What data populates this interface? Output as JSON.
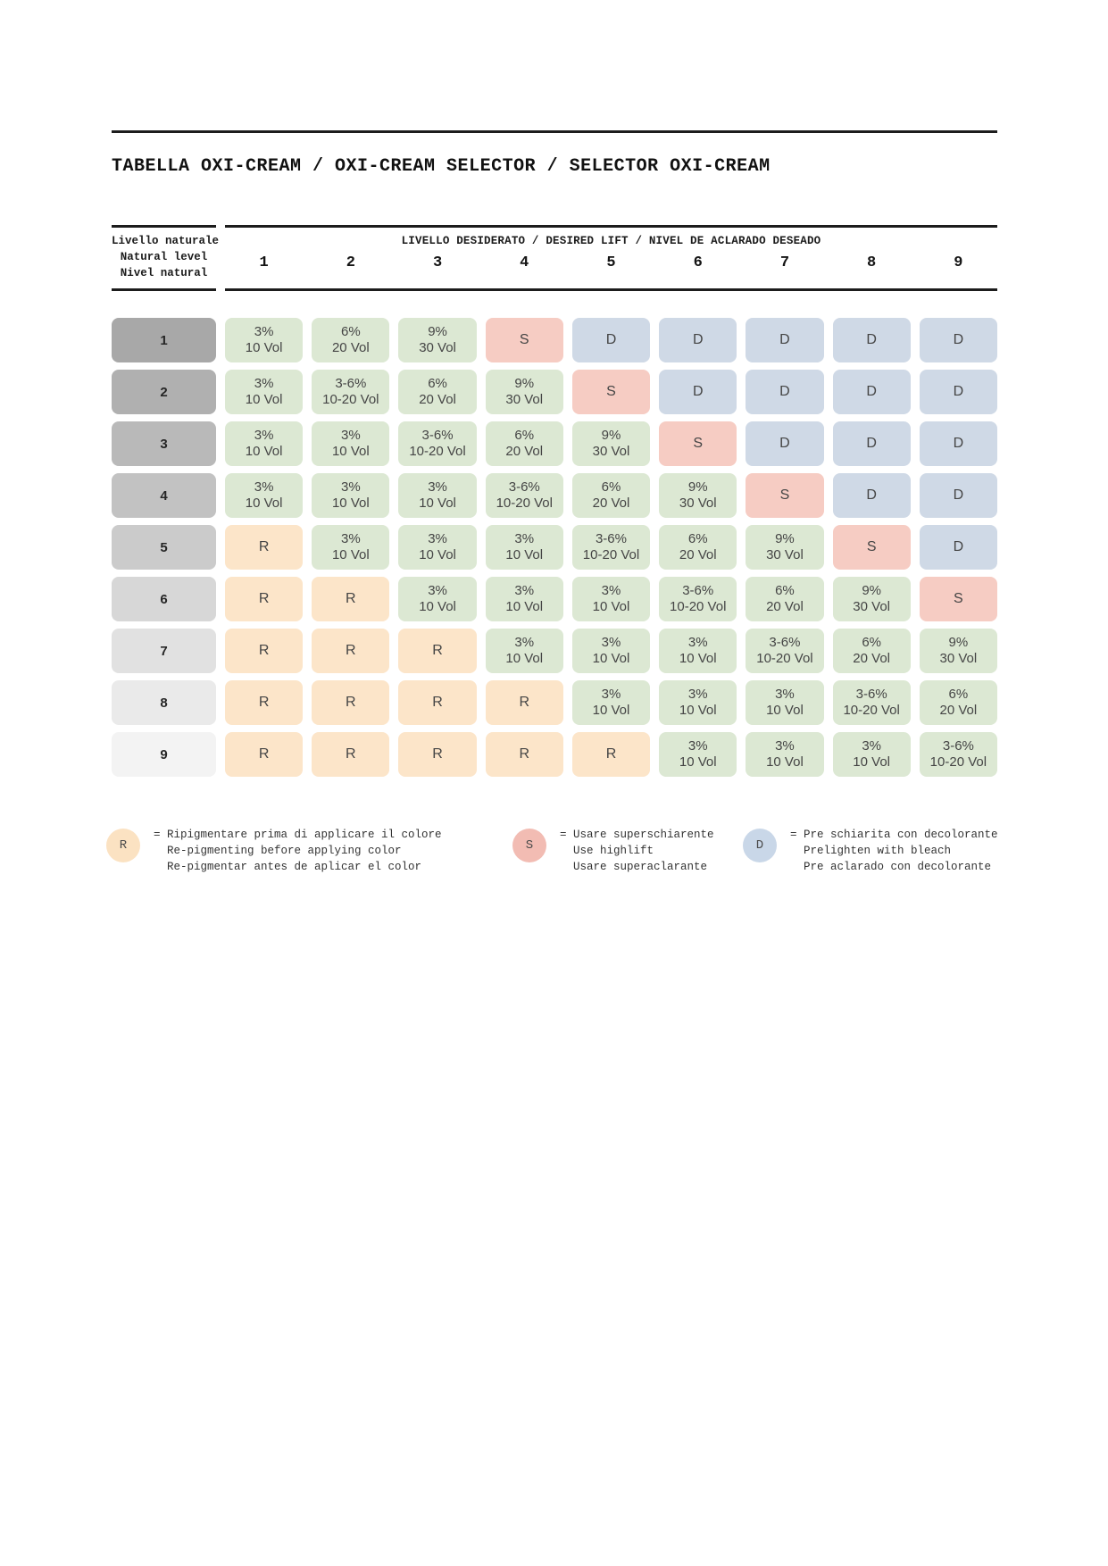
{
  "title": "TABELLA OXI-CREAM / OXI-CREAM SELECTOR / SELECTOR OXI-CREAM",
  "row_axis": {
    "lines": [
      "Livello naturale",
      "Natural level",
      "Nivel natural"
    ]
  },
  "col_axis": {
    "label": "LIVELLO DESIDERATO / DESIRED LIFT / NIVEL DE ACLARADO DESEADO",
    "columns": [
      "1",
      "2",
      "3",
      "4",
      "5",
      "6",
      "7",
      "8",
      "9"
    ]
  },
  "cell_types": {
    "3": {
      "lines": [
        "3%",
        "10 Vol"
      ],
      "bg": "#dce8d3"
    },
    "36": {
      "lines": [
        "3-6%",
        "10-20 Vol"
      ],
      "bg": "#dce8d3"
    },
    "6": {
      "lines": [
        "6%",
        "20 Vol"
      ],
      "bg": "#dce8d3"
    },
    "9": {
      "lines": [
        "9%",
        "30 Vol"
      ],
      "bg": "#dce8d3"
    },
    "R": {
      "lines": [
        "R"
      ],
      "bg": "#fce5c9"
    },
    "S": {
      "lines": [
        "S"
      ],
      "bg": "#f6ccc3"
    },
    "D": {
      "lines": [
        "D"
      ],
      "bg": "#cfd9e6"
    }
  },
  "rows": [
    {
      "level": "1",
      "header_bg": "#a8a8a8",
      "cells": [
        "3",
        "6",
        "9",
        "S",
        "D",
        "D",
        "D",
        "D",
        "D"
      ]
    },
    {
      "level": "2",
      "header_bg": "#b0b0b0",
      "cells": [
        "3",
        "36",
        "6",
        "9",
        "S",
        "D",
        "D",
        "D",
        "D"
      ]
    },
    {
      "level": "3",
      "header_bg": "#b9b9b9",
      "cells": [
        "3",
        "3",
        "36",
        "6",
        "9",
        "S",
        "D",
        "D",
        "D"
      ]
    },
    {
      "level": "4",
      "header_bg": "#c2c2c2",
      "cells": [
        "3",
        "3",
        "3",
        "36",
        "6",
        "9",
        "S",
        "D",
        "D"
      ]
    },
    {
      "level": "5",
      "header_bg": "#cbcbcb",
      "cells": [
        "R",
        "3",
        "3",
        "3",
        "36",
        "6",
        "9",
        "S",
        "D"
      ]
    },
    {
      "level": "6",
      "header_bg": "#d7d7d7",
      "cells": [
        "R",
        "R",
        "3",
        "3",
        "3",
        "36",
        "6",
        "9",
        "S"
      ]
    },
    {
      "level": "7",
      "header_bg": "#e1e1e1",
      "cells": [
        "R",
        "R",
        "R",
        "3",
        "3",
        "3",
        "36",
        "6",
        "9"
      ]
    },
    {
      "level": "8",
      "header_bg": "#eaeaea",
      "cells": [
        "R",
        "R",
        "R",
        "R",
        "3",
        "3",
        "3",
        "36",
        "6"
      ]
    },
    {
      "level": "9",
      "header_bg": "#f3f3f3",
      "cells": [
        "R",
        "R",
        "R",
        "R",
        "R",
        "3",
        "3",
        "3",
        "36"
      ]
    }
  ],
  "legend": [
    {
      "symbol": "R",
      "color": "#fbe2c2",
      "lines": [
        "= Ripigmentare prima di applicare il colore",
        "Re-pigmenting before applying color",
        "Re-pigmentar antes de aplicar el color"
      ]
    },
    {
      "symbol": "S",
      "color": "#f2bcb3",
      "lines": [
        "= Usare superschiarente",
        "Use highlift",
        "Usare superaclarante"
      ]
    },
    {
      "symbol": "D",
      "color": "#c9d7e8",
      "lines": [
        "= Pre schiarita con decolorante",
        "Prelighten with bleach",
        "Pre aclarado con decolorante"
      ]
    }
  ]
}
